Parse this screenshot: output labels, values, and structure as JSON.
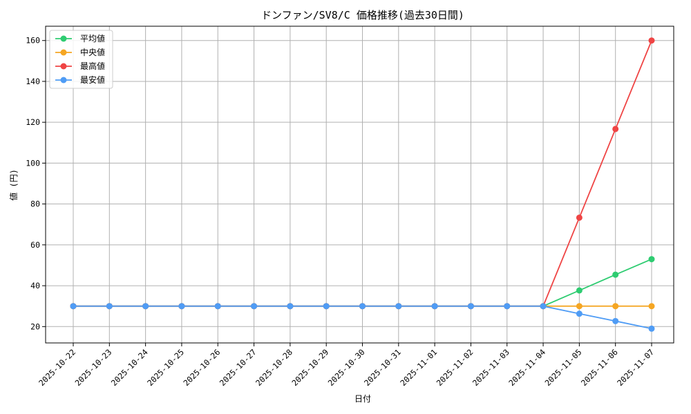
{
  "chart_data": {
    "type": "line",
    "title": "ドンファン/SV8/C 価格推移(過去30日間)",
    "xlabel": "日付",
    "ylabel": "値 (円)",
    "categories": [
      "2025-10-22",
      "2025-10-23",
      "2025-10-24",
      "2025-10-25",
      "2025-10-26",
      "2025-10-27",
      "2025-10-28",
      "2025-10-29",
      "2025-10-30",
      "2025-10-31",
      "2025-11-01",
      "2025-11-02",
      "2025-11-03",
      "2025-11-04",
      "2025-11-05",
      "2025-11-06",
      "2025-11-07"
    ],
    "ylim": [
      12,
      167
    ],
    "yticks": [
      20,
      40,
      60,
      80,
      100,
      120,
      140,
      160
    ],
    "grid": true,
    "legend_position": "top-left",
    "series": [
      {
        "name": "平均値",
        "color": "#2ecc71",
        "values": [
          30,
          30,
          30,
          30,
          30,
          30,
          30,
          30,
          30,
          30,
          30,
          30,
          30,
          30,
          37.7,
          45.4,
          53
        ]
      },
      {
        "name": "中央値",
        "color": "#f5a623",
        "values": [
          30,
          30,
          30,
          30,
          30,
          30,
          30,
          30,
          30,
          30,
          30,
          30,
          30,
          30,
          30,
          30,
          30
        ]
      },
      {
        "name": "最高値",
        "color": "#ef4444",
        "values": [
          30,
          30,
          30,
          30,
          30,
          30,
          30,
          30,
          30,
          30,
          30,
          30,
          30,
          30,
          73.3,
          116.7,
          160
        ]
      },
      {
        "name": "最安値",
        "color": "#4f9cf5",
        "values": [
          30,
          30,
          30,
          30,
          30,
          30,
          30,
          30,
          30,
          30,
          30,
          30,
          30,
          30,
          26.3,
          22.7,
          19
        ]
      }
    ]
  }
}
